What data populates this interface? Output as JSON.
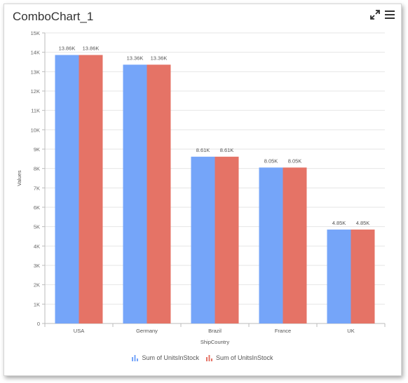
{
  "widget": {
    "title": "ComboChart_1",
    "toolbar": {
      "expand_icon": "expand-arrows-icon",
      "menu_icon": "hamburger-menu-icon"
    }
  },
  "chart_data": {
    "type": "bar",
    "categories": [
      "USA",
      "Germany",
      "Brazil",
      "France",
      "UK"
    ],
    "series": [
      {
        "name": "Sum of UnitsInStock",
        "color": "#75a5f9",
        "values": [
          13860,
          13360,
          8610,
          8050,
          4850
        ],
        "labels": [
          "13.86K",
          "13.36K",
          "8.61K",
          "8.05K",
          "4.85K"
        ]
      },
      {
        "name": "Sum of UnitsInStock",
        "color": "#e57366",
        "values": [
          13860,
          13360,
          8610,
          8050,
          4850
        ],
        "labels": [
          "13.86K",
          "13.36K",
          "8.61K",
          "8.05K",
          "4.85K"
        ]
      }
    ],
    "xlabel": "ShipCountry",
    "ylabel": "Values",
    "ylim": [
      0,
      15000
    ],
    "yticks": [
      0,
      1000,
      2000,
      3000,
      4000,
      5000,
      6000,
      7000,
      8000,
      9000,
      10000,
      11000,
      12000,
      13000,
      14000,
      15000
    ],
    "ytick_labels": [
      "0",
      "1K",
      "2K",
      "3K",
      "4K",
      "5K",
      "6K",
      "7K",
      "8K",
      "9K",
      "10K",
      "11K",
      "12K",
      "13K",
      "14K",
      "15K"
    ],
    "grid": true,
    "legend_position": "bottom"
  }
}
